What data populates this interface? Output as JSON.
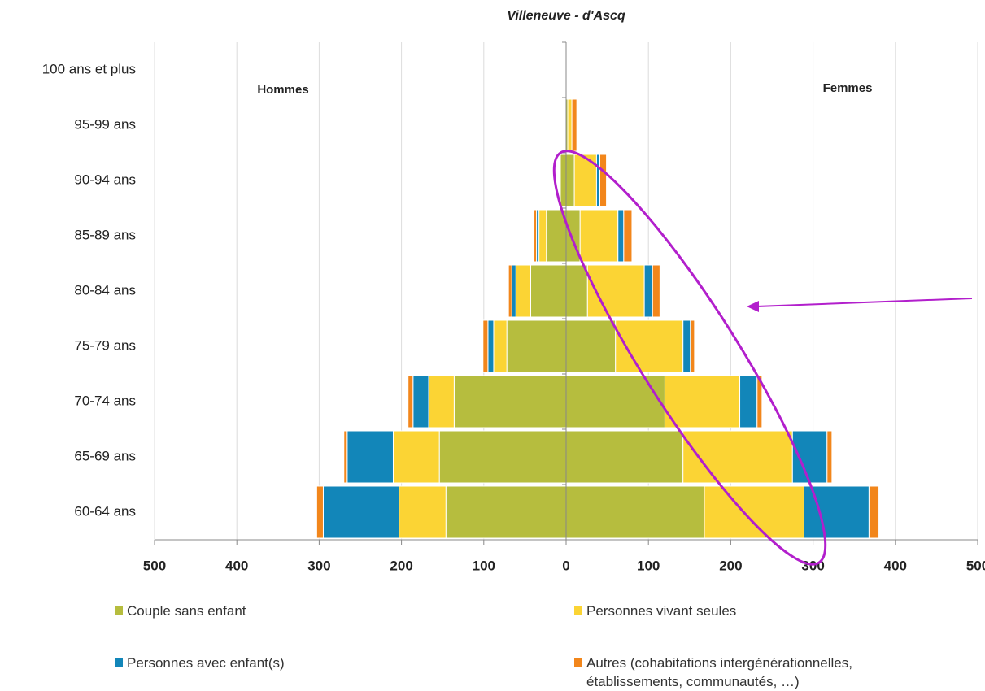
{
  "chart_data": {
    "type": "pyramid",
    "title": "Villeneuve - d'Ascq",
    "left_label": "Hommes",
    "right_label": "Femmes",
    "categories": [
      "100 ans et plus",
      "95-99 ans",
      "90-94 ans",
      "85-89 ans",
      "80-84 ans",
      "75-79 ans",
      "70-74 ans",
      "65-69 ans",
      "60-64 ans"
    ],
    "series": [
      {
        "name": "Couple sans enfant",
        "color": "#b6bd3e",
        "left": [
          0,
          0,
          7,
          24,
          43,
          72,
          136,
          154,
          146
        ],
        "right": [
          0,
          2,
          10,
          17,
          26,
          60,
          120,
          142,
          168
        ]
      },
      {
        "name": "Personnes vivant seules",
        "color": "#fbd434",
        "left": [
          0,
          1,
          1,
          9,
          18,
          16,
          31,
          56,
          57
        ],
        "right": [
          0,
          5,
          27,
          46,
          69,
          82,
          91,
          133,
          121
        ]
      },
      {
        "name": "Personnes avec enfant(s)",
        "color": "#1286b9",
        "left": [
          0,
          0,
          0,
          3,
          5,
          7,
          19,
          56,
          92
        ],
        "right": [
          0,
          0,
          4,
          7,
          10,
          9,
          21,
          42,
          79
        ]
      },
      {
        "name": "Autres (cohabitations intergénérationnelles, établissements, communautés, …)",
        "color": "#f2861b",
        "left": [
          0,
          0,
          0,
          3,
          4,
          6,
          6,
          4,
          8
        ],
        "right": [
          0,
          6,
          8,
          10,
          9,
          5,
          6,
          6,
          12
        ]
      }
    ],
    "xlim": [
      -500,
      500
    ],
    "xticks": [
      {
        "value": -500,
        "label": "500"
      },
      {
        "value": -400,
        "label": "400"
      },
      {
        "value": -300,
        "label": "300"
      },
      {
        "value": -200,
        "label": "200"
      },
      {
        "value": -100,
        "label": "100"
      },
      0,
      100,
      200,
      300,
      400,
      500
    ],
    "grid": true
  }
}
